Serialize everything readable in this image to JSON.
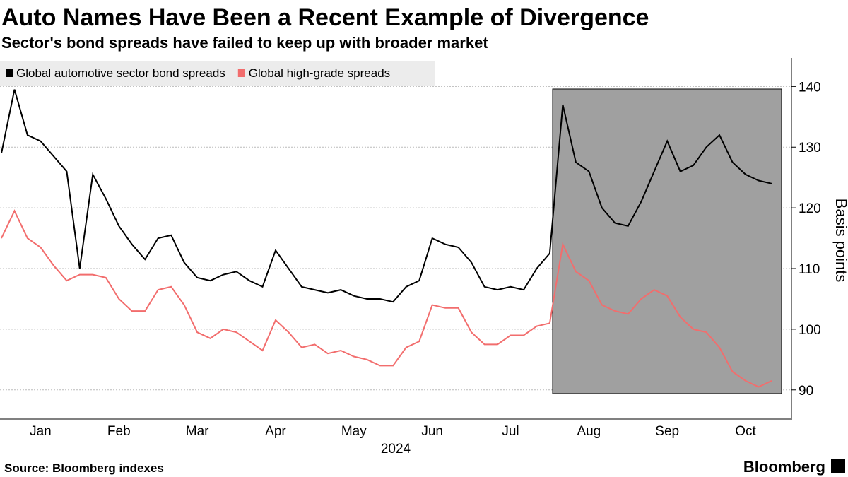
{
  "chart_data": {
    "type": "line",
    "title": "Auto Names Have Been a Recent Example of Divergence",
    "subtitle": "Sector's bond spreads have failed to keep up with broader market",
    "y_axis_label": "Basis points",
    "x_axis_label": "2024",
    "source": "Source: Bloomberg indexes",
    "brand": "Bloomberg",
    "categories": [
      null,
      null,
      null,
      "Jan",
      null,
      null,
      null,
      null,
      null,
      "Feb",
      null,
      null,
      null,
      null,
      null,
      "Mar",
      null,
      null,
      null,
      null,
      null,
      "Apr",
      null,
      null,
      null,
      null,
      null,
      "May",
      null,
      null,
      null,
      null,
      null,
      "Jun",
      null,
      null,
      null,
      null,
      null,
      "Jul",
      null,
      null,
      null,
      null,
      null,
      "Aug",
      null,
      null,
      null,
      null,
      null,
      "Sep",
      null,
      null,
      null,
      null,
      null,
      "Oct",
      null,
      null
    ],
    "series": [
      {
        "name": "Global automotive sector bond spreads",
        "color": "#000000",
        "values": [
          129,
          139.5,
          132,
          131,
          128.5,
          126,
          110,
          125.5,
          121.5,
          117,
          114,
          111.5,
          115,
          115.5,
          111,
          108.5,
          108,
          109,
          109.5,
          108,
          107,
          113,
          110,
          107,
          106.5,
          106,
          106.5,
          105.5,
          105,
          105,
          104.5,
          107,
          108,
          115,
          114,
          113.5,
          111,
          107,
          106.5,
          107,
          106.5,
          110,
          112.5,
          137,
          127.5,
          126,
          120,
          117.5,
          117,
          121,
          126,
          131,
          126,
          127,
          130,
          132,
          127.5,
          125.5,
          124.5,
          124
        ]
      },
      {
        "name": "Global high-grade spreads",
        "color": "#f26d6d",
        "values": [
          115,
          119.5,
          115,
          113.5,
          110.5,
          108,
          109,
          109,
          108.5,
          105,
          103,
          103,
          106.5,
          107,
          104,
          99.5,
          98.5,
          100,
          99.5,
          98,
          96.5,
          101.5,
          99.5,
          97,
          97.5,
          96,
          96.5,
          95.5,
          95,
          94,
          94,
          97,
          98,
          104,
          103.5,
          103.5,
          99.5,
          97.5,
          97.5,
          99,
          99,
          100.5,
          101,
          114,
          109.5,
          108,
          104,
          103,
          102.5,
          105,
          106.5,
          105.5,
          102,
          100,
          99.5,
          97,
          93,
          91.5,
          90.5,
          91.5
        ]
      }
    ],
    "ylim": [
      85.2,
      144.7
    ],
    "yticks": [
      90,
      100,
      110,
      120,
      130,
      140
    ],
    "grid": true
  }
}
